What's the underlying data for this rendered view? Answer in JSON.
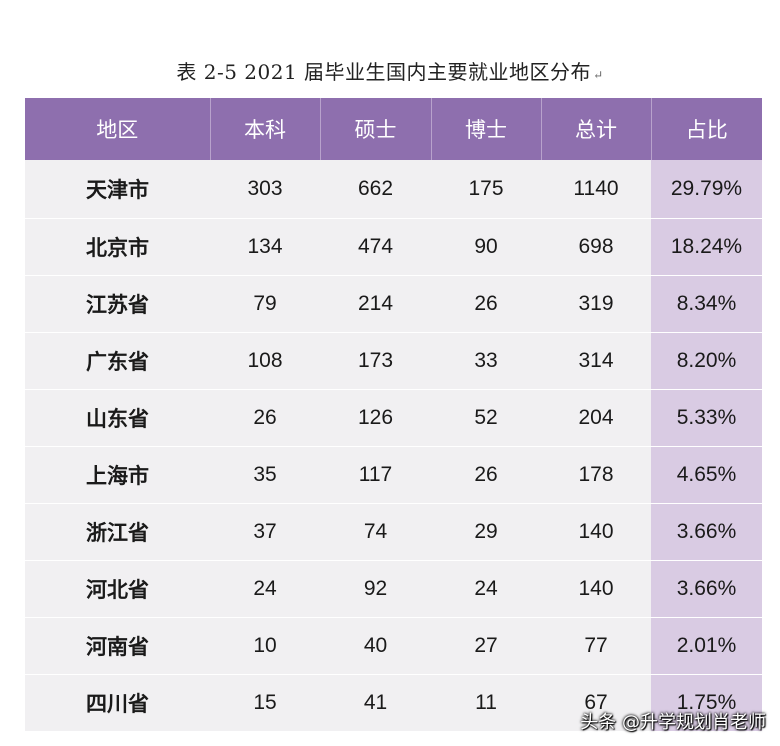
{
  "caption": {
    "text": "表 2-5   2021 届毕业生国内主要就业地区分布",
    "return_mark": "↵"
  },
  "table": {
    "headers": [
      "地区",
      "本科",
      "硕士",
      "博士",
      "总计",
      "占比"
    ],
    "rows": [
      [
        "天津市",
        "303",
        "662",
        "175",
        "1140",
        "29.79%"
      ],
      [
        "北京市",
        "134",
        "474",
        "90",
        "698",
        "18.24%"
      ],
      [
        "江苏省",
        "79",
        "214",
        "26",
        "319",
        "8.34%"
      ],
      [
        "广东省",
        "108",
        "173",
        "33",
        "314",
        "8.20%"
      ],
      [
        "山东省",
        "26",
        "126",
        "52",
        "204",
        "5.33%"
      ],
      [
        "上海市",
        "35",
        "117",
        "26",
        "178",
        "4.65%"
      ],
      [
        "浙江省",
        "37",
        "74",
        "29",
        "140",
        "3.66%"
      ],
      [
        "河北省",
        "24",
        "92",
        "24",
        "140",
        "3.66%"
      ],
      [
        "河南省",
        "10",
        "40",
        "27",
        "77",
        "2.01%"
      ],
      [
        "四川省",
        "15",
        "41",
        "11",
        "67",
        "1.75%"
      ]
    ]
  },
  "watermark": "头条 @升学规划肖老师",
  "colors": {
    "header_bg": "#8e6fae",
    "row_bg": "#f1f0f2",
    "share_column_bg": "#d9cbe3"
  }
}
